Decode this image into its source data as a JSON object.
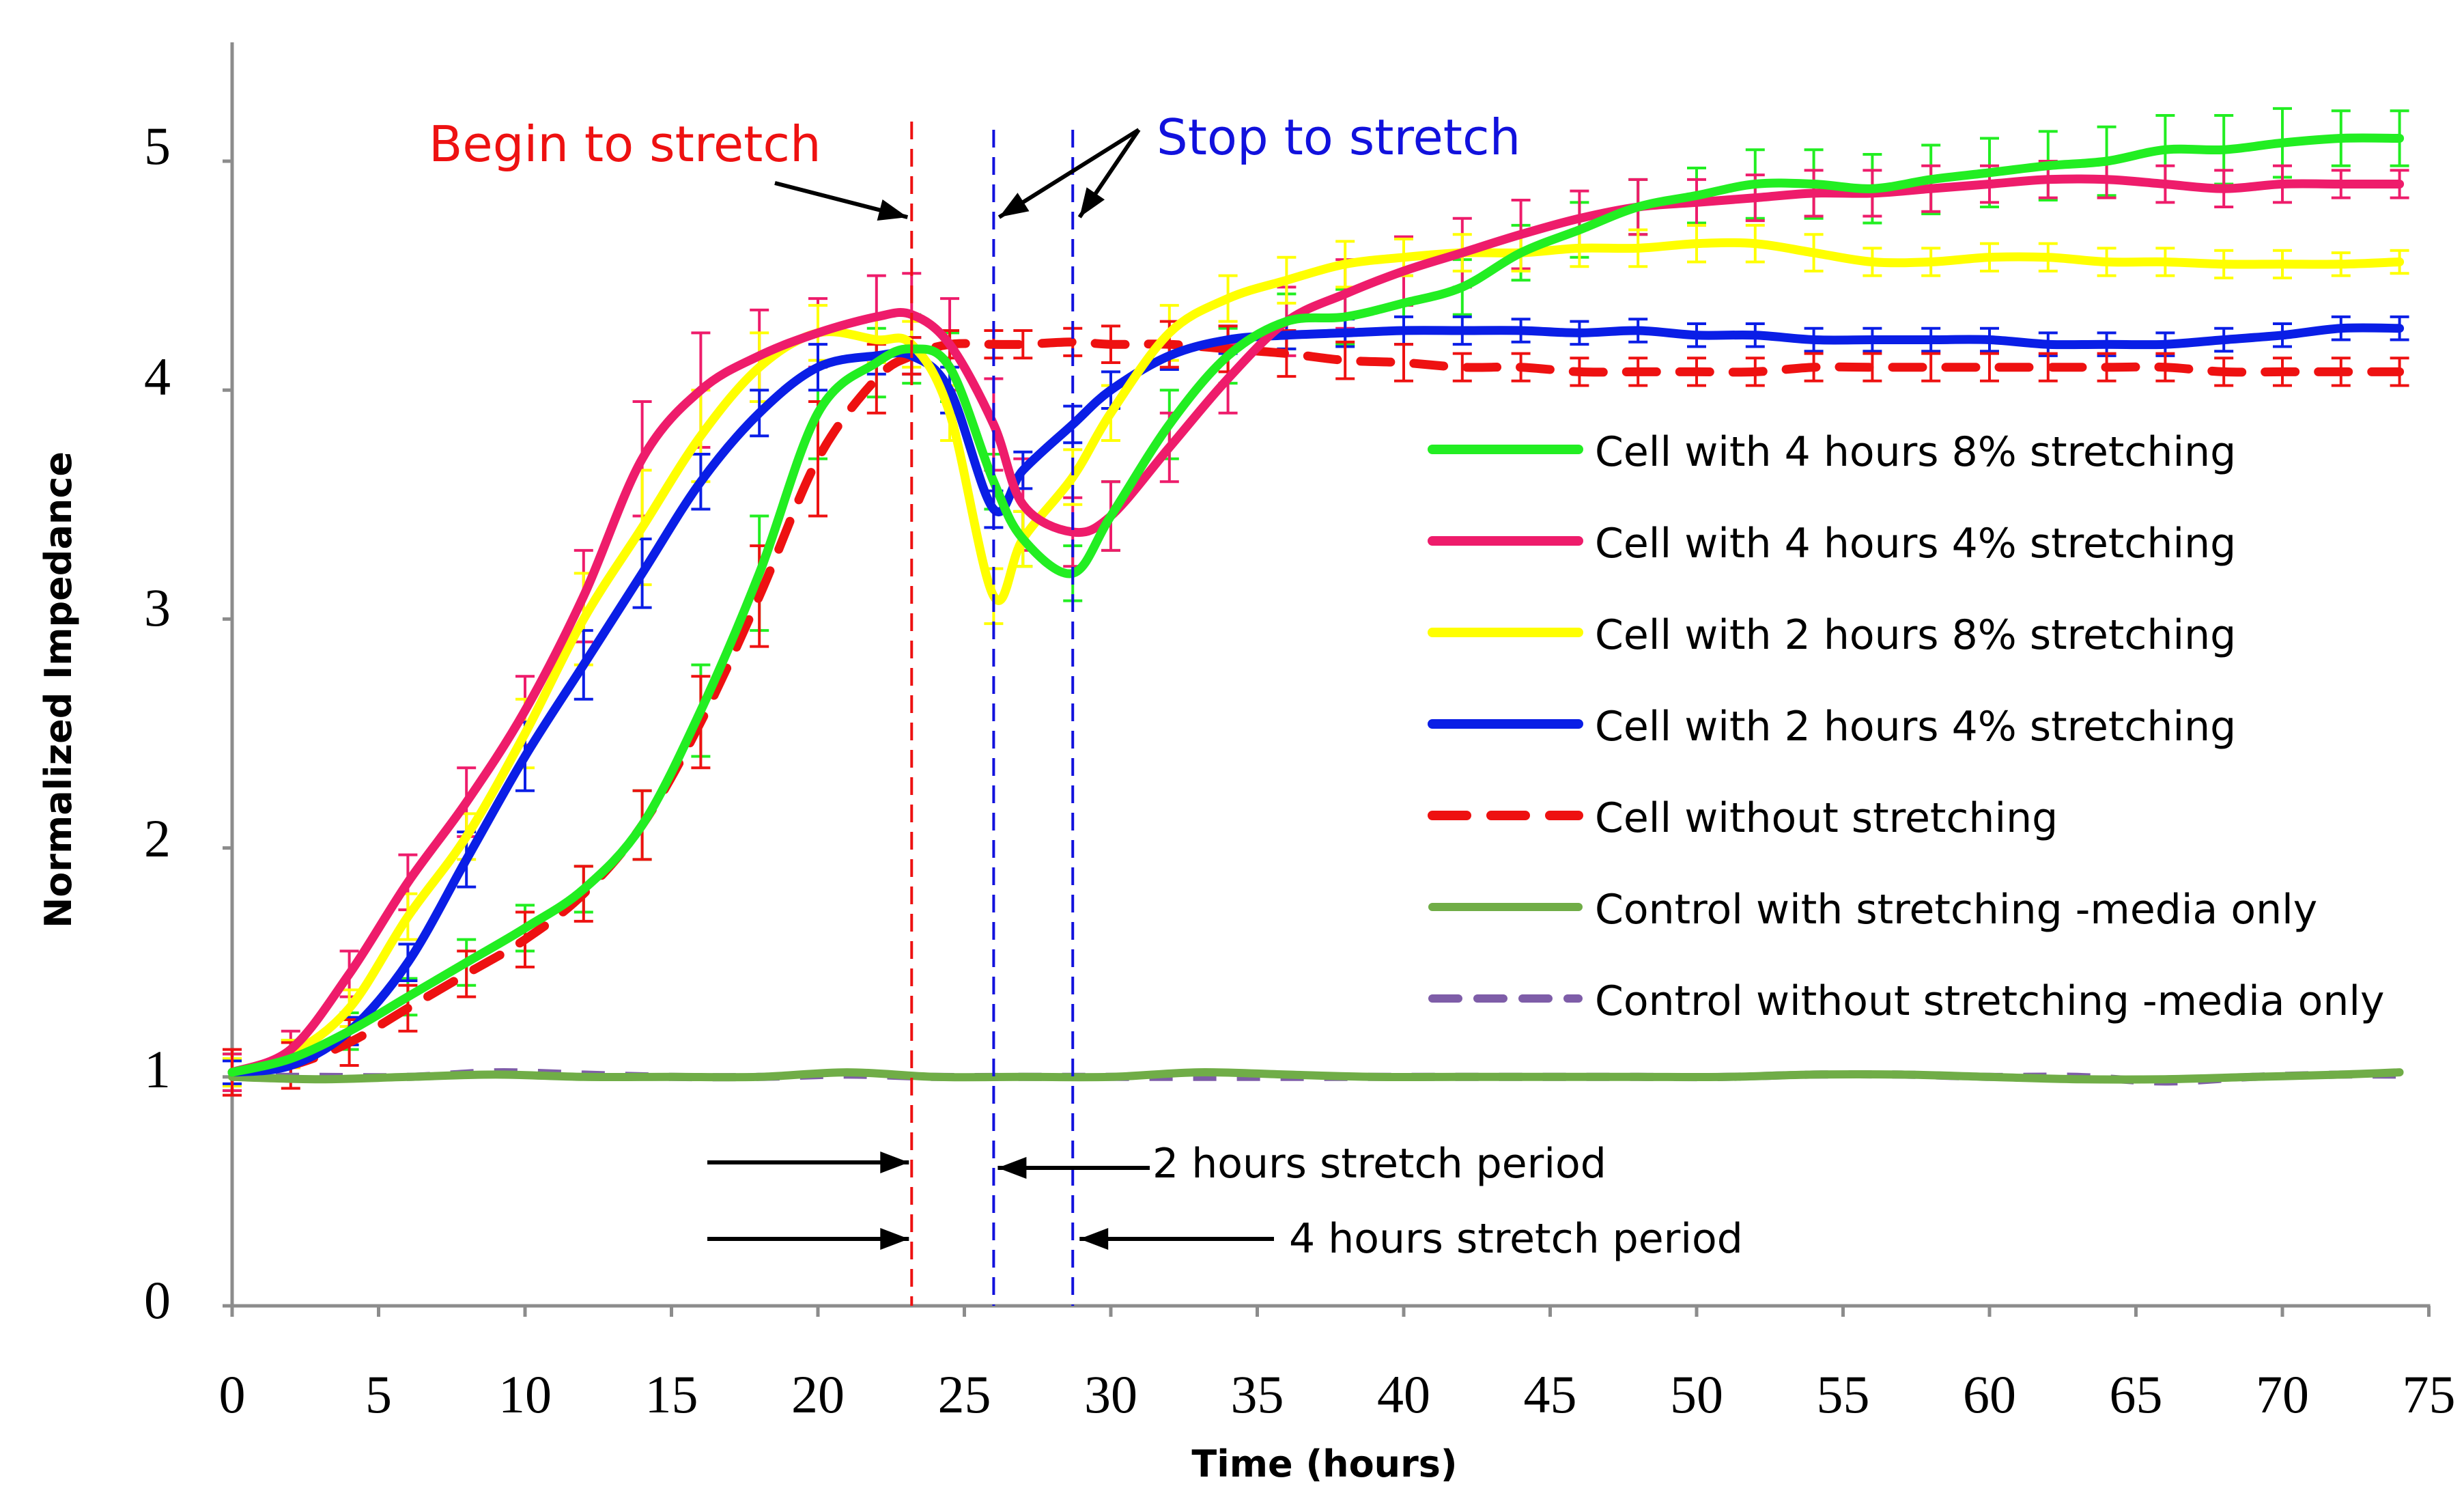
{
  "chart_data": {
    "type": "line",
    "title": "",
    "xlabel": "Time (hours)",
    "ylabel": "Normalized Impedance",
    "xlim": [
      0,
      75
    ],
    "ylim": [
      0,
      5.5
    ],
    "xticks": [
      "0",
      "5",
      "10",
      "15",
      "20",
      "25",
      "30",
      "35",
      "40",
      "45",
      "50",
      "55",
      "60",
      "65",
      "70",
      "75"
    ],
    "yticks": [
      "0",
      "1",
      "2",
      "3",
      "4",
      "5"
    ],
    "grid": false,
    "legend_position": "right",
    "series": [
      {
        "name": "Cell with 4 hours 8% stretching",
        "color": "#22ee22",
        "dash": "solid",
        "x": [
          0,
          2,
          4,
          6,
          8,
          10,
          12,
          14,
          16,
          18,
          20,
          22,
          23.2,
          24.5,
          26,
          27,
          28.7,
          30,
          32,
          34,
          36,
          38,
          40,
          42,
          44,
          46,
          48,
          50,
          52,
          54,
          56,
          58,
          60,
          62,
          64,
          66,
          68,
          70,
          72,
          74
        ],
        "y": [
          1.02,
          1.08,
          1.2,
          1.35,
          1.5,
          1.65,
          1.82,
          2.1,
          2.6,
          3.2,
          3.9,
          4.12,
          4.18,
          4.1,
          3.6,
          3.35,
          3.2,
          3.45,
          3.85,
          4.15,
          4.3,
          4.32,
          4.38,
          4.45,
          4.6,
          4.7,
          4.8,
          4.85,
          4.9,
          4.9,
          4.88,
          4.92,
          4.95,
          4.98,
          5.0,
          5.05,
          5.05,
          5.08,
          5.1,
          5.1
        ],
        "err": [
          0.08,
          0.08,
          0.08,
          0.08,
          0.1,
          0.1,
          0.1,
          0.15,
          0.2,
          0.25,
          0.2,
          0.15,
          0.15,
          0.15,
          0.12,
          0.12,
          0.12,
          0.15,
          0.15,
          0.12,
          0.12,
          0.12,
          0.12,
          0.12,
          0.12,
          0.12,
          0.12,
          0.12,
          0.15,
          0.15,
          0.15,
          0.15,
          0.15,
          0.15,
          0.15,
          0.15,
          0.15,
          0.15,
          0.12,
          0.12
        ]
      },
      {
        "name": "Cell with 4 hours 4% stretching",
        "color": "#ee1c6b",
        "dash": "solid",
        "x": [
          0,
          2,
          4,
          6,
          8,
          10,
          12,
          14,
          16,
          18,
          20,
          22,
          23.2,
          24.5,
          26,
          27,
          28.7,
          30,
          32,
          34,
          36,
          38,
          40,
          42,
          44,
          46,
          48,
          50,
          52,
          54,
          56,
          58,
          60,
          62,
          64,
          66,
          68,
          70,
          72,
          74
        ],
        "y": [
          1.02,
          1.12,
          1.45,
          1.85,
          2.2,
          2.6,
          3.1,
          3.7,
          4.0,
          4.15,
          4.25,
          4.32,
          4.33,
          4.2,
          3.85,
          3.5,
          3.38,
          3.45,
          3.75,
          4.05,
          4.3,
          4.42,
          4.52,
          4.6,
          4.68,
          4.75,
          4.8,
          4.82,
          4.84,
          4.86,
          4.86,
          4.88,
          4.9,
          4.92,
          4.92,
          4.9,
          4.88,
          4.9,
          4.9,
          4.9
        ],
        "err": [
          0.08,
          0.08,
          0.1,
          0.12,
          0.15,
          0.15,
          0.2,
          0.25,
          0.25,
          0.2,
          0.15,
          0.18,
          0.18,
          0.2,
          0.2,
          0.2,
          0.15,
          0.15,
          0.15,
          0.15,
          0.15,
          0.15,
          0.15,
          0.15,
          0.15,
          0.12,
          0.12,
          0.1,
          0.1,
          0.1,
          0.1,
          0.1,
          0.08,
          0.08,
          0.08,
          0.08,
          0.08,
          0.08,
          0.06,
          0.06
        ]
      },
      {
        "name": "Cell with 2 hours 8% stretching",
        "color": "#ffff00",
        "dash": "solid",
        "x": [
          0,
          2,
          4,
          6,
          8,
          10,
          12,
          14,
          16,
          18,
          20,
          22,
          23.2,
          24.5,
          26,
          27,
          28.7,
          30,
          32,
          34,
          36,
          38,
          40,
          42,
          44,
          46,
          48,
          50,
          52,
          54,
          56,
          58,
          60,
          62,
          64,
          66,
          68,
          70,
          72,
          74
        ],
        "y": [
          1.02,
          1.1,
          1.3,
          1.7,
          2.05,
          2.5,
          3.0,
          3.4,
          3.8,
          4.1,
          4.25,
          4.22,
          4.2,
          3.9,
          3.1,
          3.35,
          3.62,
          3.9,
          4.25,
          4.4,
          4.48,
          4.55,
          4.58,
          4.6,
          4.6,
          4.62,
          4.62,
          4.64,
          4.64,
          4.6,
          4.56,
          4.56,
          4.58,
          4.58,
          4.56,
          4.56,
          4.55,
          4.55,
          4.55,
          4.56
        ],
        "err": [
          0.06,
          0.06,
          0.08,
          0.1,
          0.1,
          0.15,
          0.2,
          0.25,
          0.2,
          0.15,
          0.12,
          0.1,
          0.1,
          0.12,
          0.12,
          0.12,
          0.12,
          0.12,
          0.12,
          0.1,
          0.1,
          0.1,
          0.08,
          0.08,
          0.08,
          0.08,
          0.08,
          0.08,
          0.08,
          0.08,
          0.06,
          0.06,
          0.06,
          0.06,
          0.06,
          0.06,
          0.06,
          0.06,
          0.05,
          0.05
        ]
      },
      {
        "name": "Cell with 2 hours 4% stretching",
        "color": "#0a1ee6",
        "dash": "solid",
        "x": [
          0,
          2,
          4,
          6,
          8,
          10,
          12,
          14,
          16,
          18,
          20,
          22,
          23.2,
          24.5,
          26,
          27,
          28.7,
          30,
          32,
          34,
          36,
          38,
          40,
          42,
          44,
          46,
          48,
          50,
          52,
          54,
          56,
          58,
          60,
          62,
          64,
          66,
          68,
          70,
          72,
          74
        ],
        "y": [
          1.02,
          1.05,
          1.2,
          1.5,
          1.95,
          2.4,
          2.8,
          3.2,
          3.6,
          3.9,
          4.1,
          4.15,
          4.15,
          4.0,
          3.48,
          3.65,
          3.85,
          4.0,
          4.15,
          4.22,
          4.24,
          4.25,
          4.26,
          4.26,
          4.26,
          4.25,
          4.26,
          4.24,
          4.24,
          4.22,
          4.22,
          4.22,
          4.22,
          4.2,
          4.2,
          4.2,
          4.22,
          4.24,
          4.27,
          4.27
        ],
        "err": [
          0.05,
          0.05,
          0.06,
          0.08,
          0.12,
          0.15,
          0.15,
          0.15,
          0.12,
          0.1,
          0.1,
          0.08,
          0.08,
          0.1,
          0.08,
          0.08,
          0.08,
          0.08,
          0.06,
          0.06,
          0.06,
          0.06,
          0.06,
          0.06,
          0.05,
          0.05,
          0.05,
          0.05,
          0.05,
          0.05,
          0.05,
          0.05,
          0.05,
          0.05,
          0.05,
          0.05,
          0.05,
          0.05,
          0.05,
          0.05
        ]
      },
      {
        "name": "Cell without stretching",
        "color": "#ee1111",
        "dash": "dashed",
        "x": [
          0,
          2,
          4,
          6,
          8,
          10,
          12,
          14,
          16,
          18,
          20,
          22,
          23.2,
          24.5,
          26,
          27,
          28.7,
          30,
          32,
          34,
          36,
          38,
          40,
          42,
          44,
          46,
          48,
          50,
          52,
          54,
          56,
          58,
          60,
          62,
          64,
          66,
          68,
          70,
          72,
          74
        ],
        "y": [
          1.02,
          1.05,
          1.15,
          1.3,
          1.45,
          1.6,
          1.8,
          2.1,
          2.55,
          3.1,
          3.7,
          4.05,
          4.15,
          4.2,
          4.2,
          4.2,
          4.21,
          4.2,
          4.2,
          4.18,
          4.16,
          4.13,
          4.12,
          4.1,
          4.1,
          4.08,
          4.08,
          4.08,
          4.08,
          4.1,
          4.1,
          4.1,
          4.1,
          4.1,
          4.1,
          4.1,
          4.08,
          4.08,
          4.08,
          4.08
        ],
        "err": [
          0.1,
          0.1,
          0.1,
          0.1,
          0.1,
          0.12,
          0.12,
          0.15,
          0.2,
          0.22,
          0.25,
          0.15,
          0.08,
          0.06,
          0.06,
          0.06,
          0.06,
          0.08,
          0.1,
          0.1,
          0.1,
          0.08,
          0.08,
          0.06,
          0.06,
          0.06,
          0.06,
          0.06,
          0.06,
          0.06,
          0.06,
          0.06,
          0.06,
          0.06,
          0.06,
          0.06,
          0.06,
          0.06,
          0.06,
          0.06
        ]
      },
      {
        "name": "Control with stretching -media only",
        "color": "#70ad47",
        "dash": "solid",
        "x": [
          0,
          3,
          6,
          9,
          12,
          15,
          18,
          21,
          24,
          27,
          30,
          33,
          36,
          39,
          42,
          45,
          48,
          51,
          54,
          57,
          60,
          63,
          66,
          69,
          72,
          74
        ],
        "y": [
          1.0,
          0.99,
          1.0,
          1.01,
          1.0,
          1.0,
          1.0,
          1.02,
          1.0,
          1.0,
          1.0,
          1.02,
          1.01,
          1.0,
          1.0,
          1.0,
          1.0,
          1.0,
          1.01,
          1.01,
          1.0,
          0.99,
          0.99,
          1.0,
          1.01,
          1.02
        ]
      },
      {
        "name": "Control without stretching -media only",
        "color": "#7e5da8",
        "dash": "dashed",
        "x": [
          0,
          3,
          6,
          9,
          12,
          15,
          18,
          21,
          24,
          27,
          30,
          33,
          36,
          39,
          42,
          45,
          48,
          51,
          54,
          57,
          60,
          63,
          66,
          69,
          72,
          74
        ],
        "y": [
          1.0,
          1.0,
          1.0,
          1.02,
          1.01,
          1.0,
          1.0,
          1.01,
          1.0,
          1.0,
          1.0,
          1.0,
          1.0,
          1.0,
          1.0,
          1.0,
          1.0,
          1.0,
          1.01,
          1.01,
          1.0,
          1.0,
          0.98,
          1.0,
          1.01,
          1.01
        ]
      }
    ],
    "annotations": {
      "begin_label": "Begin to stretch",
      "stop_label": "Stop to stretch",
      "period_2h_label": "2 hours stretch period",
      "period_4h_label": "4 hours stretch period",
      "begin_time": 23.2,
      "stop_2h_time": 26,
      "stop_4h_time": 28.7,
      "begin_color": "#ee1111",
      "stop_color": "#1111dd"
    }
  }
}
